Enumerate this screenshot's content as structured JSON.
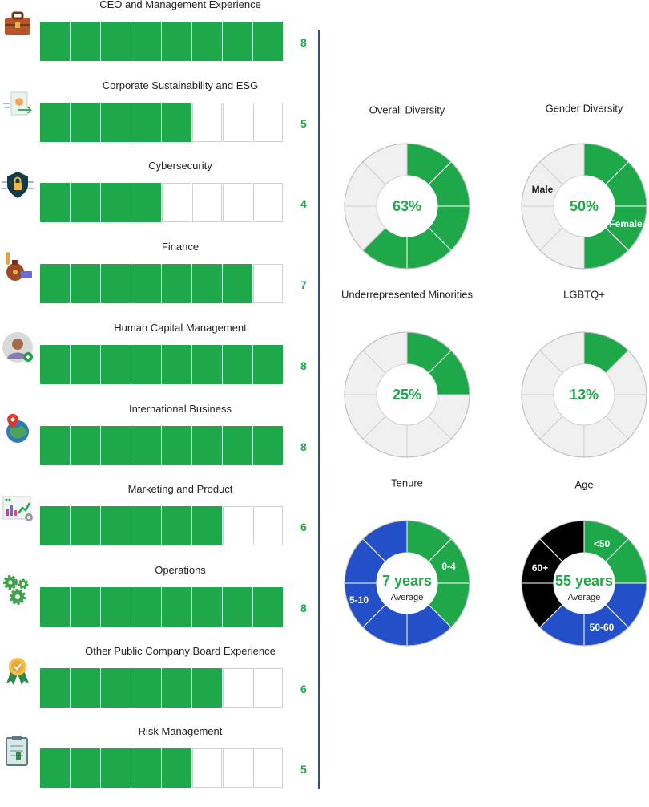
{
  "colors": {
    "green": "#1ea84a",
    "blue": "#2350c8",
    "black": "#000000",
    "empty": "#f0f0f0",
    "divider": "#2a4fa6"
  },
  "skills": [
    {
      "title": "CEO and Management Experience",
      "count": 8,
      "icon": "briefcase-icon"
    },
    {
      "title": "Corporate Sustainability and ESG",
      "count": 5,
      "icon": "esg-document-icon"
    },
    {
      "title": "Cybersecurity",
      "count": 4,
      "icon": "shield-lock-icon"
    },
    {
      "title": "Finance",
      "count": 7,
      "icon": "money-bag-icon"
    },
    {
      "title": "Human Capital Management",
      "count": 8,
      "icon": "person-add-icon"
    },
    {
      "title": "International Business",
      "count": 8,
      "icon": "globe-pin-icon"
    },
    {
      "title": "Marketing and Product",
      "count": 6,
      "icon": "marketing-chart-icon"
    },
    {
      "title": "Operations",
      "count": 8,
      "icon": "gears-icon"
    },
    {
      "title": "Other Public Company Board Experience",
      "count": 6,
      "icon": "award-ribbon-icon"
    },
    {
      "title": "Risk Management",
      "count": 5,
      "icon": "clipboard-icon"
    }
  ],
  "chart_data": [
    {
      "type": "bar",
      "title": "",
      "categories": [
        "CEO and Management Experience",
        "Corporate Sustainability and ESG",
        "Cybersecurity",
        "Finance",
        "Human Capital Management",
        "International Business",
        "Marketing and Product",
        "Operations",
        "Other Public Company Board Experience",
        "Risk Management"
      ],
      "values": [
        8,
        5,
        4,
        7,
        8,
        8,
        6,
        8,
        6,
        5
      ],
      "ylim": [
        0,
        8
      ]
    },
    {
      "type": "pie",
      "title": "Overall Diversity",
      "center_label": "63%",
      "sub_label": "",
      "total": 8,
      "slices": [
        {
          "label": "",
          "value": 5,
          "color": "#1ea84a"
        },
        {
          "label": "",
          "value": 3,
          "color": "#f0f0f0"
        }
      ]
    },
    {
      "type": "pie",
      "title": "Gender Diversity",
      "center_label": "50%",
      "sub_label": "",
      "total": 8,
      "slices": [
        {
          "label": "Female",
          "value": 4,
          "color": "#1ea84a",
          "text_color": "#ffffff"
        },
        {
          "label": "Male",
          "value": 4,
          "color": "#f0f0f0",
          "text_color": "#222222"
        }
      ]
    },
    {
      "type": "pie",
      "title": "Underrepresented Minorities",
      "center_label": "25%",
      "sub_label": "",
      "total": 8,
      "slices": [
        {
          "label": "",
          "value": 2,
          "color": "#1ea84a"
        },
        {
          "label": "",
          "value": 6,
          "color": "#f0f0f0"
        }
      ]
    },
    {
      "type": "pie",
      "title": "LGBTQ+",
      "center_label": "13%",
      "sub_label": "",
      "total": 8,
      "slices": [
        {
          "label": "",
          "value": 1,
          "color": "#1ea84a"
        },
        {
          "label": "",
          "value": 7,
          "color": "#f0f0f0"
        }
      ]
    },
    {
      "type": "pie",
      "title": "Tenure",
      "center_label": "7 years",
      "sub_label": "Average",
      "total": 8,
      "slices": [
        {
          "label": "0-4",
          "value": 3,
          "color": "#1ea84a",
          "text_color": "#ffffff"
        },
        {
          "label": "5-10",
          "value": 5,
          "color": "#2350c8",
          "text_color": "#ffffff"
        }
      ]
    },
    {
      "type": "pie",
      "title": "Age",
      "center_label": "55 years",
      "sub_label": "Average",
      "total": 8,
      "slices": [
        {
          "label": "<50",
          "value": 2,
          "color": "#1ea84a",
          "text_color": "#ffffff"
        },
        {
          "label": "50-60",
          "value": 3,
          "color": "#2350c8",
          "text_color": "#ffffff"
        },
        {
          "label": "60+",
          "value": 3,
          "color": "#000000",
          "text_color": "#ffffff"
        }
      ]
    }
  ]
}
